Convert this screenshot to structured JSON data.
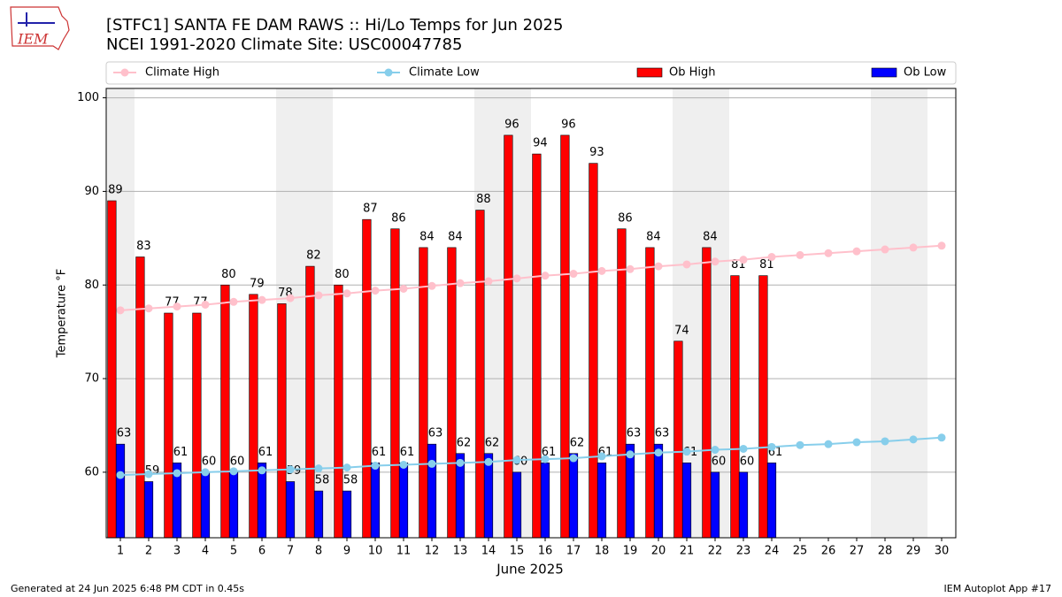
{
  "chart_data": {
    "type": "bar",
    "title": "[STFC1] SANTA FE DAM RAWS :: Hi/Lo Temps for Jun 2025",
    "subtitle": "NCEI 1991-2020 Climate Site: USC00047785",
    "logo_text": "IEM",
    "x_label": "June 2025",
    "y_label": "Temperature °F",
    "footer_left": "Generated at 24 Jun 2025 6:48 PM CDT in 0.45s",
    "footer_right": "IEM Autoplot App #17",
    "x": [
      1,
      2,
      3,
      4,
      5,
      6,
      7,
      8,
      9,
      10,
      11,
      12,
      13,
      14,
      15,
      16,
      17,
      18,
      19,
      20,
      21,
      22,
      23,
      24,
      25,
      26,
      27,
      28,
      29,
      30
    ],
    "xlim": [
      0.5,
      30.5
    ],
    "xticks": [
      1,
      2,
      3,
      4,
      5,
      6,
      7,
      8,
      9,
      10,
      11,
      12,
      13,
      14,
      15,
      16,
      17,
      18,
      19,
      20,
      21,
      22,
      23,
      24,
      25,
      26,
      27,
      28,
      29,
      30
    ],
    "ylim": [
      53,
      101
    ],
    "yticks": [
      60,
      70,
      80,
      90,
      100
    ],
    "grid": true,
    "series": [
      {
        "name": "Climate High",
        "type": "line",
        "color": "#ffc0cb",
        "values": [
          77.3,
          77.5,
          77.7,
          77.9,
          78.2,
          78.4,
          78.6,
          78.9,
          79.1,
          79.4,
          79.6,
          79.9,
          80.2,
          80.4,
          80.7,
          81.0,
          81.2,
          81.5,
          81.7,
          82.0,
          82.2,
          82.5,
          82.7,
          83.0,
          83.2,
          83.4,
          83.6,
          83.8,
          84.0,
          84.2
        ]
      },
      {
        "name": "Climate Low",
        "type": "line",
        "color": "#87ceeb",
        "values": [
          59.7,
          59.8,
          59.9,
          60.0,
          60.1,
          60.2,
          60.3,
          60.4,
          60.5,
          60.7,
          60.8,
          60.9,
          61.0,
          61.1,
          61.3,
          61.4,
          61.5,
          61.7,
          61.9,
          62.1,
          62.2,
          62.4,
          62.5,
          62.7,
          62.9,
          63.0,
          63.2,
          63.3,
          63.5,
          63.7
        ]
      },
      {
        "name": "Ob High",
        "type": "bar",
        "color": "#ff0000",
        "values": [
          89,
          83,
          77,
          77,
          80,
          79,
          78,
          82,
          80,
          87,
          86,
          84,
          84,
          88,
          96,
          94,
          96,
          93,
          86,
          84,
          74,
          84,
          81,
          81,
          null,
          null,
          null,
          null,
          null,
          null
        ]
      },
      {
        "name": "Ob Low",
        "type": "bar",
        "color": "#0000ff",
        "values": [
          63,
          59,
          61,
          60,
          60,
          61,
          59,
          58,
          58,
          61,
          61,
          63,
          62,
          62,
          60,
          61,
          62,
          61,
          63,
          63,
          61,
          60,
          60,
          61,
          null,
          null,
          null,
          null,
          null,
          null
        ]
      }
    ]
  }
}
